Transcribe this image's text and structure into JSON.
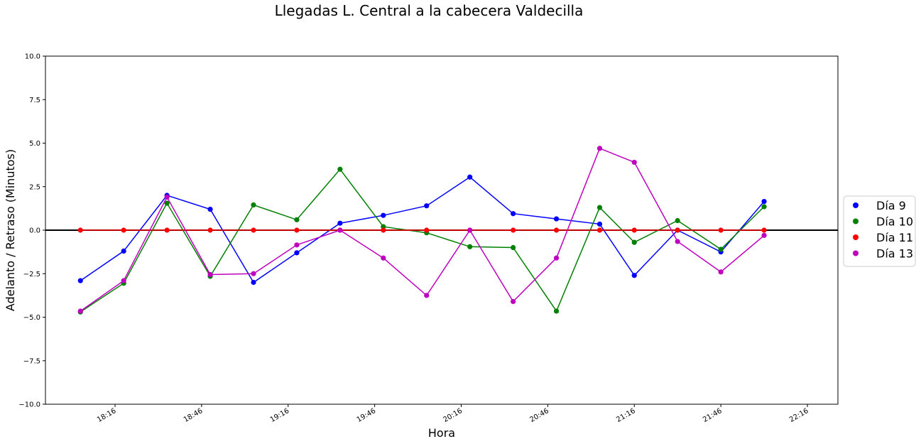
{
  "chart_data": {
    "type": "line",
    "title": "Llegadas L. Central a la cabecera Valdecilla",
    "xlabel": "Hora",
    "ylabel": "Adelanto / Retraso (Minutos)",
    "ylim": [
      -10,
      10
    ],
    "yticks": [
      "−10.0",
      "−7.5",
      "−5.0",
      "−2.5",
      "0.0",
      "2.5",
      "5.0",
      "7.5",
      "10.0"
    ],
    "ytick_values": [
      -10,
      -7.5,
      -5,
      -2.5,
      0,
      2.5,
      5,
      7.5,
      10
    ],
    "xticks": [
      "18:16",
      "18:46",
      "19:16",
      "19:46",
      "20:16",
      "20:46",
      "21:16",
      "21:46",
      "22:16"
    ],
    "x": [
      "18:04",
      "18:19",
      "18:34",
      "18:49",
      "19:04",
      "19:19",
      "19:34",
      "19:49",
      "20:04",
      "20:19",
      "20:34",
      "20:49",
      "21:04",
      "21:16",
      "21:31",
      "21:46",
      "22:01",
      "22:16"
    ],
    "reference_line": 0,
    "grid": false,
    "legend_position": "right",
    "series": [
      {
        "name": "Día 9",
        "color": "#0000ff",
        "values": [
          -2.9,
          -1.2,
          2.0,
          1.2,
          -3.0,
          -1.3,
          0.4,
          0.85,
          1.4,
          3.05,
          0.95,
          0.65,
          0.35,
          -2.6,
          0.0,
          -1.25,
          1.65,
          null
        ]
      },
      {
        "name": "Día 10",
        "color": "#008000",
        "values": [
          -4.7,
          -3.05,
          1.55,
          -2.65,
          1.45,
          0.6,
          3.5,
          0.2,
          -0.15,
          -0.95,
          -1.0,
          -4.65,
          1.3,
          -0.7,
          0.55,
          -1.1,
          1.35,
          null
        ]
      },
      {
        "name": "Día 11",
        "color": "#ff0000",
        "values": [
          0,
          0,
          0,
          0,
          0,
          0,
          0,
          0,
          0,
          0,
          0,
          0,
          0,
          0,
          0,
          0,
          0,
          null
        ]
      },
      {
        "name": "Día 13",
        "color": "#bf00bf",
        "values": [
          -4.65,
          -2.9,
          1.9,
          -2.55,
          -2.5,
          -0.85,
          0.0,
          -1.6,
          -3.75,
          0.0,
          -4.1,
          -1.6,
          4.7,
          3.9,
          -0.65,
          -2.4,
          -0.3,
          null
        ]
      }
    ]
  }
}
